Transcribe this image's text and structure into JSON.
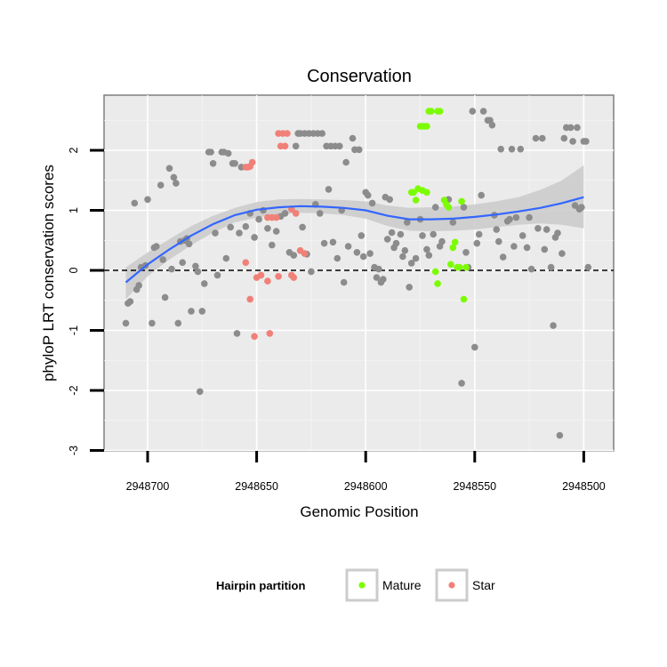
{
  "chart_data": {
    "type": "scatter",
    "title": "Conservation",
    "xlabel": "Genomic Position",
    "ylabel": "phyloP LRT conservation scores",
    "x_reversed": true,
    "xlim": [
      2948710,
      2948485
    ],
    "ylim": [
      -3,
      2.9
    ],
    "x_ticks": [
      2948700,
      2948650,
      2948600,
      2948550,
      2948500
    ],
    "x_tick_labels": [
      "2948700",
      "2948650",
      "2948600",
      "2948550",
      "2948500"
    ],
    "y_ticks": [
      -3,
      -2,
      -1,
      0,
      1,
      2
    ],
    "y_tick_labels": [
      "-3",
      "-2",
      "-1",
      "0",
      "1",
      "2"
    ],
    "reference_line": {
      "y": 0,
      "style": "dashed"
    },
    "legend": {
      "title": "Hairpin partition",
      "position": "bottom",
      "entries": [
        {
          "name": "Mature",
          "color": "#7CFC00"
        },
        {
          "name": "Star",
          "color": "#F08078"
        }
      ]
    },
    "colors": {
      "other": "#8C8C8C",
      "Mature": "#7CFC00",
      "Star": "#F08078",
      "smooth": "#3366FF",
      "ribbon": "#CCCCCC",
      "panel": "#EBEBEB"
    },
    "smooth": {
      "x": [
        2948710,
        2948700,
        2948690,
        2948680,
        2948670,
        2948660,
        2948650,
        2948640,
        2948630,
        2948620,
        2948610,
        2948600,
        2948590,
        2948580,
        2948570,
        2948560,
        2948550,
        2948540,
        2948530,
        2948520,
        2948510,
        2948500
      ],
      "y": [
        -0.2,
        0.1,
        0.35,
        0.58,
        0.77,
        0.92,
        1.01,
        1.05,
        1.07,
        1.06,
        1.04,
        1.0,
        0.91,
        0.85,
        0.85,
        0.86,
        0.89,
        0.93,
        0.98,
        1.04,
        1.12,
        1.22
      ],
      "lower": [
        -0.48,
        -0.1,
        0.18,
        0.42,
        0.63,
        0.8,
        0.88,
        0.93,
        0.96,
        0.95,
        0.92,
        0.86,
        0.74,
        0.66,
        0.65,
        0.66,
        0.68,
        0.72,
        0.76,
        0.78,
        0.76,
        0.7
      ],
      "upper": [
        0.05,
        0.3,
        0.52,
        0.74,
        0.91,
        1.04,
        1.14,
        1.18,
        1.19,
        1.18,
        1.17,
        1.15,
        1.08,
        1.04,
        1.05,
        1.06,
        1.1,
        1.15,
        1.22,
        1.34,
        1.5,
        1.75
      ]
    },
    "series": [
      {
        "name": "Other",
        "points": [
          [
            2948710,
            -0.88
          ],
          [
            2948709,
            -0.55
          ],
          [
            2948708,
            -0.52
          ],
          [
            2948706,
            1.12
          ],
          [
            2948705,
            -0.32
          ],
          [
            2948704,
            -0.25
          ],
          [
            2948703,
            0.05
          ],
          [
            2948701,
            0.08
          ],
          [
            2948700,
            1.18
          ],
          [
            2948698,
            -0.88
          ],
          [
            2948697,
            0.38
          ],
          [
            2948696,
            0.4
          ],
          [
            2948694,
            1.42
          ],
          [
            2948693,
            0.18
          ],
          [
            2948692,
            -0.45
          ],
          [
            2948690,
            1.7
          ],
          [
            2948689,
            0.02
          ],
          [
            2948688,
            1.55
          ],
          [
            2948687,
            1.45
          ],
          [
            2948686,
            -0.88
          ],
          [
            2948685,
            0.48
          ],
          [
            2948684,
            0.13
          ],
          [
            2948683,
            0.5
          ],
          [
            2948682,
            0.53
          ],
          [
            2948681,
            0.44
          ],
          [
            2948680,
            -0.68
          ],
          [
            2948678,
            0.07
          ],
          [
            2948677,
            -0.02
          ],
          [
            2948676,
            -2.02
          ],
          [
            2948675,
            -0.68
          ],
          [
            2948674,
            -0.22
          ],
          [
            2948672,
            1.97
          ],
          [
            2948671,
            1.97
          ],
          [
            2948670,
            1.78
          ],
          [
            2948669,
            0.62
          ],
          [
            2948668,
            -0.08
          ],
          [
            2948666,
            1.97
          ],
          [
            2948665,
            1.97
          ],
          [
            2948663,
            1.95
          ],
          [
            2948664,
            0.2
          ],
          [
            2948662,
            0.72
          ],
          [
            2948661,
            1.78
          ],
          [
            2948660,
            1.78
          ],
          [
            2948658,
            0.62
          ],
          [
            2948659,
            -1.05
          ],
          [
            2948657,
            1.72
          ],
          [
            2948655,
            0.73
          ],
          [
            2948653,
            0.95
          ],
          [
            2948651,
            0.55
          ],
          [
            2948649,
            0.85
          ],
          [
            2948647,
            1.0
          ],
          [
            2948645,
            0.7
          ],
          [
            2948643,
            0.42
          ],
          [
            2948641,
            0.65
          ],
          [
            2948639,
            0.9
          ],
          [
            2948637,
            0.95
          ],
          [
            2948635,
            0.3
          ],
          [
            2948633,
            0.25
          ],
          [
            2948631,
            2.28
          ],
          [
            2948630,
            2.28
          ],
          [
            2948628,
            2.28
          ],
          [
            2948626,
            2.28
          ],
          [
            2948624,
            2.28
          ],
          [
            2948622,
            2.28
          ],
          [
            2948620,
            2.28
          ],
          [
            2948632,
            2.07
          ],
          [
            2948629,
            0.72
          ],
          [
            2948627,
            0.27
          ],
          [
            2948625,
            -0.02
          ],
          [
            2948623,
            1.1
          ],
          [
            2948621,
            0.95
          ],
          [
            2948619,
            0.45
          ],
          [
            2948618,
            2.07
          ],
          [
            2948616,
            2.07
          ],
          [
            2948614,
            2.07
          ],
          [
            2948612,
            2.07
          ],
          [
            2948617,
            1.35
          ],
          [
            2948615,
            0.47
          ],
          [
            2948613,
            0.2
          ],
          [
            2948611,
            1.0
          ],
          [
            2948610,
            -0.2
          ],
          [
            2948609,
            1.8
          ],
          [
            2948608,
            0.4
          ],
          [
            2948606,
            2.2
          ],
          [
            2948605,
            2.01
          ],
          [
            2948603,
            2.01
          ],
          [
            2948604,
            0.3
          ],
          [
            2948602,
            0.58
          ],
          [
            2948601,
            0.23
          ],
          [
            2948600,
            1.3
          ],
          [
            2948599,
            1.25
          ],
          [
            2948598,
            0.28
          ],
          [
            2948597,
            1.12
          ],
          [
            2948596,
            0.05
          ],
          [
            2948595,
            -0.12
          ],
          [
            2948594,
            0.02
          ],
          [
            2948593,
            -0.2
          ],
          [
            2948592,
            -0.15
          ],
          [
            2948591,
            1.22
          ],
          [
            2948590,
            0.52
          ],
          [
            2948589,
            1.18
          ],
          [
            2948588,
            0.63
          ],
          [
            2948587,
            0.38
          ],
          [
            2948586,
            0.45
          ],
          [
            2948584,
            0.6
          ],
          [
            2948583,
            0.23
          ],
          [
            2948582,
            0.33
          ],
          [
            2948581,
            0.8
          ],
          [
            2948580,
            -0.28
          ],
          [
            2948579,
            0.12
          ],
          [
            2948577,
            0.2
          ],
          [
            2948575,
            0.85
          ],
          [
            2948574,
            0.58
          ],
          [
            2948572,
            0.35
          ],
          [
            2948571,
            0.25
          ],
          [
            2948569,
            0.6
          ],
          [
            2948568,
            1.05
          ],
          [
            2948566,
            0.4
          ],
          [
            2948565,
            0.48
          ],
          [
            2948562,
            1.18
          ],
          [
            2948560,
            0.8
          ],
          [
            2948556,
            -1.88
          ],
          [
            2948555,
            1.05
          ],
          [
            2948554,
            0.3
          ],
          [
            2948553,
            0.05
          ],
          [
            2948551,
            2.65
          ],
          [
            2948550,
            -1.28
          ],
          [
            2948549,
            0.45
          ],
          [
            2948548,
            0.6
          ],
          [
            2948547,
            1.25
          ],
          [
            2948546,
            2.65
          ],
          [
            2948544,
            2.5
          ],
          [
            2948543,
            2.5
          ],
          [
            2948542,
            2.42
          ],
          [
            2948541,
            0.92
          ],
          [
            2948540,
            0.68
          ],
          [
            2948539,
            0.48
          ],
          [
            2948538,
            2.02
          ],
          [
            2948537,
            0.22
          ],
          [
            2948535,
            0.82
          ],
          [
            2948534,
            0.85
          ],
          [
            2948533,
            2.02
          ],
          [
            2948532,
            0.4
          ],
          [
            2948531,
            0.88
          ],
          [
            2948529,
            2.02
          ],
          [
            2948528,
            0.58
          ],
          [
            2948526,
            0.38
          ],
          [
            2948525,
            0.88
          ],
          [
            2948524,
            0.02
          ],
          [
            2948522,
            2.2
          ],
          [
            2948521,
            0.7
          ],
          [
            2948519,
            2.2
          ],
          [
            2948518,
            0.35
          ],
          [
            2948517,
            0.68
          ],
          [
            2948515,
            0.05
          ],
          [
            2948514,
            -0.92
          ],
          [
            2948513,
            0.55
          ],
          [
            2948512,
            0.62
          ],
          [
            2948511,
            -2.75
          ],
          [
            2948510,
            0.28
          ],
          [
            2948509,
            2.2
          ],
          [
            2948508,
            2.38
          ],
          [
            2948506,
            2.38
          ],
          [
            2948505,
            2.15
          ],
          [
            2948504,
            1.08
          ],
          [
            2948503,
            2.38
          ],
          [
            2948502,
            1.02
          ],
          [
            2948501,
            1.05
          ],
          [
            2948500,
            2.15
          ],
          [
            2948499,
            2.15
          ],
          [
            2948498,
            0.05
          ]
        ]
      },
      {
        "name": "Mature",
        "points": [
          [
            2948575,
            2.4
          ],
          [
            2948574,
            2.4
          ],
          [
            2948573,
            2.4
          ],
          [
            2948572,
            2.4
          ],
          [
            2948571,
            2.65
          ],
          [
            2948570,
            2.65
          ],
          [
            2948567,
            2.65
          ],
          [
            2948566,
            2.65
          ],
          [
            2948577,
            1.17
          ],
          [
            2948579,
            1.3
          ],
          [
            2948578,
            1.3
          ],
          [
            2948576,
            1.36
          ],
          [
            2948574,
            1.33
          ],
          [
            2948572,
            1.3
          ],
          [
            2948568,
            -0.02
          ],
          [
            2948567,
            -0.22
          ],
          [
            2948564,
            1.17
          ],
          [
            2948563,
            1.1
          ],
          [
            2948561,
            0.1
          ],
          [
            2948560,
            0.38
          ],
          [
            2948559,
            0.47
          ],
          [
            2948558,
            0.05
          ],
          [
            2948557,
            0.05
          ],
          [
            2948556,
            1.15
          ],
          [
            2948555,
            -0.48
          ],
          [
            2948554,
            0.05
          ],
          [
            2948562,
            1.05
          ]
        ]
      },
      {
        "name": "Star",
        "points": [
          [
            2948655,
            1.72
          ],
          [
            2948654,
            1.72
          ],
          [
            2948652,
            1.8
          ],
          [
            2948653,
            1.73
          ],
          [
            2948640,
            2.28
          ],
          [
            2948638,
            2.28
          ],
          [
            2948636,
            2.28
          ],
          [
            2948639,
            2.07
          ],
          [
            2948637,
            2.07
          ],
          [
            2948645,
            0.88
          ],
          [
            2948643,
            0.88
          ],
          [
            2948641,
            0.88
          ],
          [
            2948634,
            1.02
          ],
          [
            2948632,
            0.95
          ],
          [
            2948630,
            0.33
          ],
          [
            2948628,
            0.28
          ],
          [
            2948634,
            -0.08
          ],
          [
            2948633,
            -0.12
          ],
          [
            2948650,
            -0.12
          ],
          [
            2948648,
            -0.08
          ],
          [
            2948645,
            -0.18
          ],
          [
            2948640,
            -0.1
          ],
          [
            2948655,
            0.13
          ],
          [
            2948653,
            -0.48
          ],
          [
            2948651,
            -1.1
          ],
          [
            2948644,
            -1.05
          ]
        ]
      }
    ]
  }
}
